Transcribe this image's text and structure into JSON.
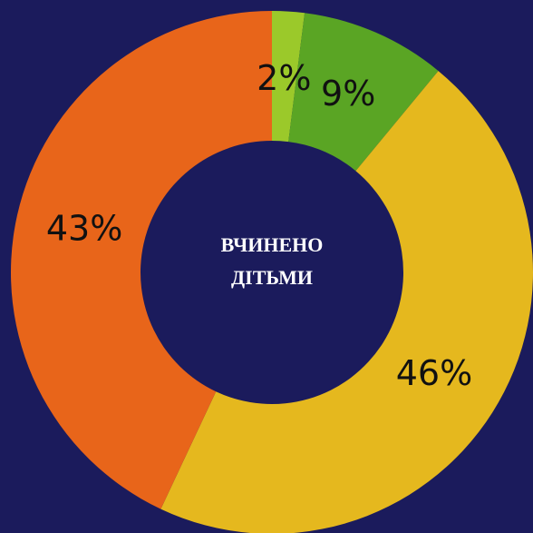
{
  "chart_data": {
    "type": "donut",
    "center_label": [
      "ВЧИНЕНО",
      "ДІТЬМИ"
    ],
    "values": [
      2,
      9,
      46,
      43
    ],
    "value_labels": [
      "2%",
      "9%",
      "46%",
      "43%"
    ],
    "colors": [
      "#9bc92a",
      "#5aa524",
      "#e5b81e",
      "#e8651a"
    ],
    "background": "#1b1b5c"
  }
}
